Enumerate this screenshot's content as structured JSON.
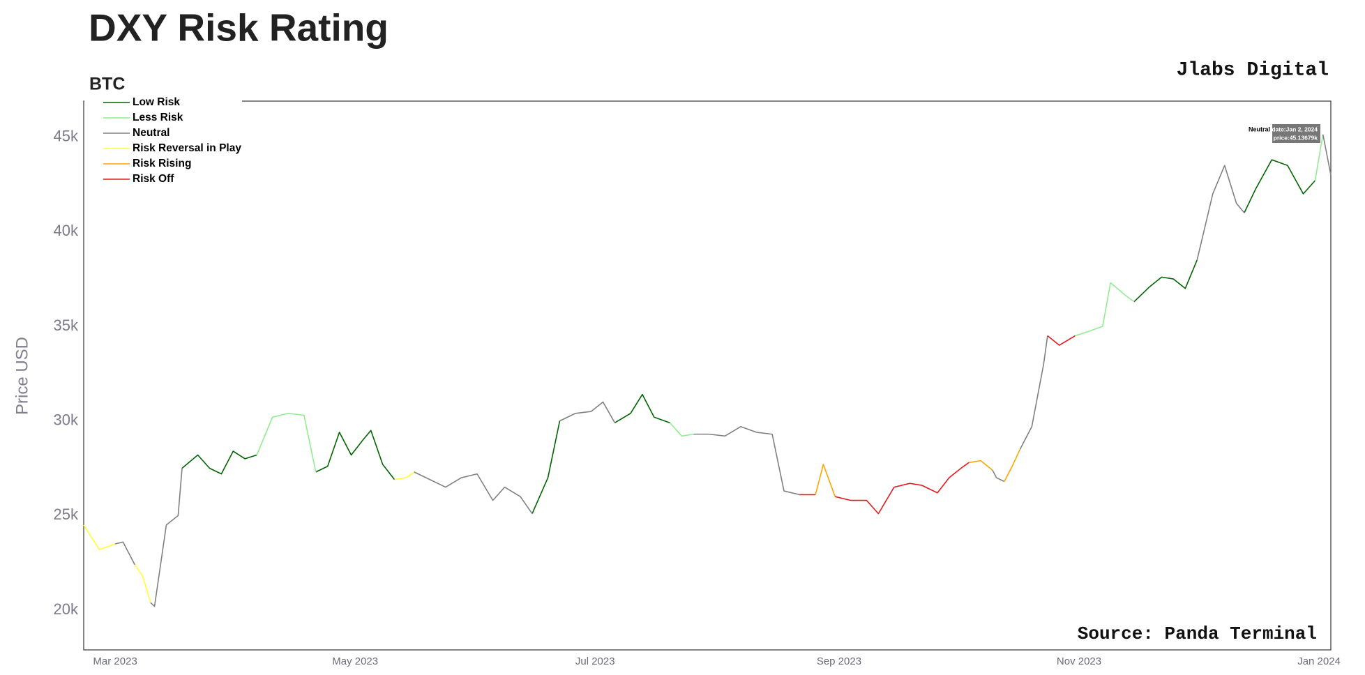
{
  "chart_data": {
    "type": "line",
    "title": "DXY Risk Rating",
    "subtitle": "BTC",
    "brand": "Jlabs Digital",
    "source": "Source: Panda Terminal",
    "y_label": "Price USD",
    "grid": false,
    "legend": "top-left",
    "tooltip": {
      "series": "Neutral",
      "date": "date:Jan 2, 2024",
      "price": "price:45.13679k"
    },
    "xlim": [
      "2023-02-21",
      "2024-01-04"
    ],
    "xticks": [
      {
        "value": "2023-03-01",
        "label": "Mar 2023"
      },
      {
        "value": "2023-05-01",
        "label": "May 2023"
      },
      {
        "value": "2023-07-01",
        "label": "Jul 2023"
      },
      {
        "value": "2023-09-01",
        "label": "Sep 2023"
      },
      {
        "value": "2023-11-01",
        "label": "Nov 2023"
      },
      {
        "value": "2024-01-01",
        "label": "Jan 2024"
      }
    ],
    "ylim": [
      17.9,
      46.9
    ],
    "yticks": [
      {
        "value": 20,
        "label": "20k"
      },
      {
        "value": 25,
        "label": "25k"
      },
      {
        "value": 30,
        "label": "30k"
      },
      {
        "value": 35,
        "label": "35k"
      },
      {
        "value": 40,
        "label": "40k"
      },
      {
        "value": 45,
        "label": "45k"
      }
    ],
    "x": [
      "2023-02-21",
      "2023-02-25",
      "2023-03-01",
      "2023-03-03",
      "2023-03-06",
      "2023-03-08",
      "2023-03-10",
      "2023-03-11",
      "2023-03-14",
      "2023-03-17",
      "2023-03-18",
      "2023-03-22",
      "2023-03-25",
      "2023-03-28",
      "2023-03-31",
      "2023-04-03",
      "2023-04-06",
      "2023-04-10",
      "2023-04-14",
      "2023-04-18",
      "2023-04-21",
      "2023-04-24",
      "2023-04-27",
      "2023-04-30",
      "2023-05-03",
      "2023-05-05",
      "2023-05-08",
      "2023-05-11",
      "2023-05-14",
      "2023-05-16",
      "2023-05-20",
      "2023-05-24",
      "2023-05-28",
      "2023-06-01",
      "2023-06-05",
      "2023-06-08",
      "2023-06-12",
      "2023-06-15",
      "2023-06-19",
      "2023-06-22",
      "2023-06-26",
      "2023-06-30",
      "2023-07-03",
      "2023-07-06",
      "2023-07-10",
      "2023-07-13",
      "2023-07-16",
      "2023-07-20",
      "2023-07-23",
      "2023-07-26",
      "2023-07-30",
      "2023-08-03",
      "2023-08-07",
      "2023-08-11",
      "2023-08-15",
      "2023-08-18",
      "2023-08-22",
      "2023-08-26",
      "2023-08-28",
      "2023-08-31",
      "2023-09-04",
      "2023-09-08",
      "2023-09-11",
      "2023-09-15",
      "2023-09-19",
      "2023-09-22",
      "2023-09-26",
      "2023-09-29",
      "2023-10-02",
      "2023-10-04",
      "2023-10-07",
      "2023-10-10",
      "2023-10-11",
      "2023-10-13",
      "2023-10-15",
      "2023-10-17",
      "2023-10-20",
      "2023-10-23",
      "2023-10-24",
      "2023-10-27",
      "2023-10-31",
      "2023-11-03",
      "2023-11-07",
      "2023-11-09",
      "2023-11-13",
      "2023-11-15",
      "2023-11-19",
      "2023-11-22",
      "2023-11-25",
      "2023-11-28",
      "2023-12-01",
      "2023-12-05",
      "2023-12-08",
      "2023-12-11",
      "2023-12-13",
      "2023-12-16",
      "2023-12-20",
      "2023-12-24",
      "2023-12-28",
      "2023-12-31",
      "2024-01-02",
      "2024-01-04"
    ],
    "series": [
      {
        "name": "Low Risk",
        "color": "#006400",
        "values": [
          null,
          null,
          null,
          null,
          null,
          null,
          null,
          null,
          null,
          null,
          27.5,
          28.2,
          27.5,
          27.2,
          28.4,
          28.0,
          28.2,
          null,
          null,
          null,
          27.3,
          27.6,
          29.4,
          28.2,
          29.0,
          29.5,
          27.7,
          26.9,
          null,
          null,
          null,
          null,
          null,
          null,
          null,
          null,
          null,
          25.1,
          27.0,
          30.0,
          null,
          null,
          null,
          29.9,
          30.4,
          31.4,
          30.2,
          29.9,
          null,
          null,
          null,
          null,
          null,
          null,
          null,
          null,
          null,
          null,
          null,
          null,
          null,
          null,
          null,
          null,
          null,
          null,
          null,
          null,
          null,
          null,
          null,
          null,
          null,
          null,
          null,
          null,
          null,
          null,
          null,
          null,
          null,
          null,
          null,
          null,
          null,
          36.3,
          37.1,
          37.6,
          37.5,
          37.0,
          38.5,
          null,
          null,
          null,
          41.0,
          42.3,
          43.8,
          43.5,
          42.0,
          42.7,
          null,
          null
        ]
      },
      {
        "name": "Less Risk",
        "color": "#90ee90",
        "values": [
          null,
          null,
          null,
          null,
          null,
          null,
          null,
          null,
          null,
          null,
          null,
          null,
          null,
          null,
          null,
          null,
          28.2,
          30.2,
          30.4,
          30.3,
          27.3,
          null,
          null,
          null,
          null,
          null,
          null,
          null,
          null,
          null,
          null,
          null,
          null,
          null,
          null,
          null,
          null,
          null,
          null,
          null,
          null,
          null,
          null,
          null,
          null,
          null,
          null,
          29.9,
          29.2,
          29.3,
          null,
          null,
          null,
          null,
          null,
          null,
          null,
          null,
          null,
          null,
          null,
          null,
          null,
          null,
          null,
          null,
          null,
          null,
          null,
          null,
          null,
          null,
          null,
          null,
          null,
          null,
          null,
          null,
          null,
          null,
          34.5,
          34.7,
          35.0,
          37.3,
          36.6,
          36.3,
          null,
          null,
          null,
          null,
          null,
          null,
          null,
          null,
          null,
          null,
          null,
          null,
          null,
          42.7,
          45.13679,
          null
        ]
      },
      {
        "name": "Neutral",
        "color": "#808080",
        "values": [
          null,
          null,
          23.5,
          23.6,
          22.4,
          null,
          20.4,
          20.2,
          24.5,
          25.0,
          27.5,
          null,
          null,
          null,
          null,
          null,
          null,
          null,
          null,
          null,
          null,
          null,
          null,
          null,
          null,
          null,
          null,
          null,
          null,
          27.3,
          26.9,
          26.5,
          27.0,
          27.2,
          25.8,
          26.5,
          26.0,
          25.1,
          null,
          30.0,
          30.4,
          30.5,
          31.0,
          29.9,
          null,
          null,
          null,
          null,
          null,
          29.3,
          29.3,
          29.2,
          29.7,
          29.4,
          29.3,
          26.3,
          26.1,
          null,
          null,
          null,
          null,
          null,
          null,
          null,
          null,
          null,
          null,
          null,
          null,
          null,
          null,
          27.4,
          27.0,
          26.8,
          null,
          28.5,
          29.7,
          33.0,
          34.5,
          null,
          null,
          null,
          null,
          null,
          null,
          null,
          null,
          null,
          null,
          null,
          38.5,
          42.0,
          43.5,
          41.5,
          41.0,
          null,
          null,
          null,
          null,
          null,
          45.13679,
          43.0
        ]
      },
      {
        "name": "Risk Reversal in Play",
        "color": "#ffff33",
        "values": [
          24.5,
          23.2,
          23.5,
          null,
          22.4,
          21.8,
          20.4,
          null,
          null,
          null,
          null,
          null,
          null,
          null,
          null,
          null,
          null,
          null,
          null,
          null,
          null,
          null,
          null,
          null,
          null,
          null,
          null,
          26.9,
          27.0,
          27.3,
          null,
          null,
          null,
          null,
          null,
          null,
          null,
          null,
          null,
          null,
          null,
          null,
          null,
          null,
          null,
          null,
          null,
          null,
          null,
          null,
          null,
          null,
          null,
          null,
          null,
          null,
          null,
          null,
          null,
          null,
          null,
          null,
          null,
          null,
          null,
          null,
          null,
          null,
          null,
          null,
          null,
          null,
          null,
          null,
          null,
          null,
          null,
          null,
          null,
          null,
          null,
          null,
          null,
          null,
          null,
          null,
          null,
          null,
          null,
          null,
          null,
          null,
          null,
          null,
          null,
          null,
          null,
          null,
          null,
          null,
          null,
          null
        ]
      },
      {
        "name": "Risk Rising",
        "color": "#ffa500",
        "values": [
          null,
          null,
          null,
          null,
          null,
          null,
          null,
          null,
          null,
          null,
          null,
          null,
          null,
          null,
          null,
          null,
          null,
          null,
          null,
          null,
          null,
          null,
          null,
          null,
          null,
          null,
          null,
          null,
          null,
          null,
          null,
          null,
          null,
          null,
          null,
          null,
          null,
          null,
          null,
          null,
          null,
          null,
          null,
          null,
          null,
          null,
          null,
          null,
          null,
          null,
          null,
          null,
          null,
          null,
          null,
          null,
          null,
          26.1,
          27.7,
          26.0,
          null,
          null,
          null,
          null,
          null,
          null,
          null,
          null,
          null,
          27.8,
          27.9,
          27.4,
          null,
          26.8,
          27.6,
          28.5,
          null,
          null,
          null,
          null,
          null,
          null,
          null,
          null,
          null,
          null,
          null,
          null,
          null,
          null,
          null,
          null,
          null,
          null,
          null,
          null,
          null,
          null,
          null,
          null,
          null,
          null
        ]
      },
      {
        "name": "Risk Off",
        "color": "#e31a1c",
        "values": [
          null,
          null,
          null,
          null,
          null,
          null,
          null,
          null,
          null,
          null,
          null,
          null,
          null,
          null,
          null,
          null,
          null,
          null,
          null,
          null,
          null,
          null,
          null,
          null,
          null,
          null,
          null,
          null,
          null,
          null,
          null,
          null,
          null,
          null,
          null,
          null,
          null,
          null,
          null,
          null,
          null,
          null,
          null,
          null,
          null,
          null,
          null,
          null,
          null,
          null,
          null,
          null,
          null,
          null,
          null,
          null,
          26.1,
          26.1,
          null,
          26.0,
          25.8,
          25.8,
          25.1,
          26.5,
          26.7,
          26.6,
          26.2,
          27.0,
          27.5,
          27.8,
          null,
          null,
          null,
          null,
          null,
          null,
          null,
          null,
          34.5,
          34.0,
          34.5,
          null,
          null,
          null,
          null,
          null,
          null,
          null,
          null,
          null,
          null,
          null,
          null,
          null,
          null,
          null,
          null,
          null,
          null,
          null,
          null,
          null
        ]
      }
    ]
  }
}
